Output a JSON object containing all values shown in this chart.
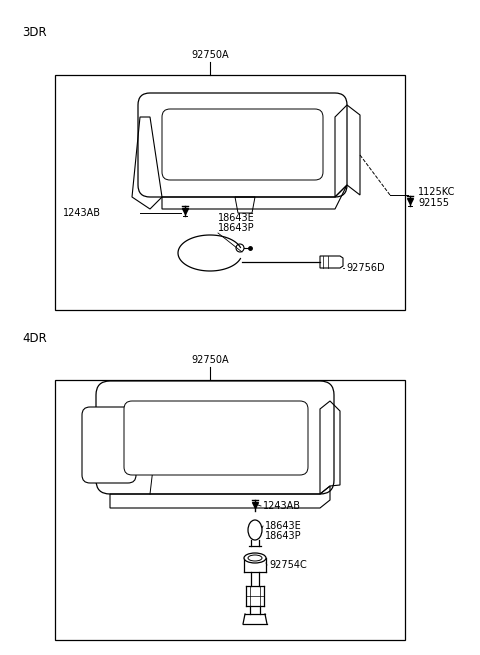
{
  "bg_color": "#ffffff",
  "section1_label": "3DR",
  "section2_label": "4DR",
  "label_92750A_1": "92750A",
  "label_92750A_2": "92750A",
  "label_1243AB_1": "1243AB",
  "label_18643E_1": "18643E",
  "label_18643P_1": "18643P",
  "label_92756D": "92756D",
  "label_1125KC": "1125KC",
  "label_92155": "92155",
  "label_1243AB_2": "1243AB",
  "label_18643E_2": "18643E",
  "label_18643P_2": "18643P",
  "label_92754C": "92754C",
  "line_color": "#000000",
  "font_size_label": 7.0,
  "font_size_section": 8.5
}
